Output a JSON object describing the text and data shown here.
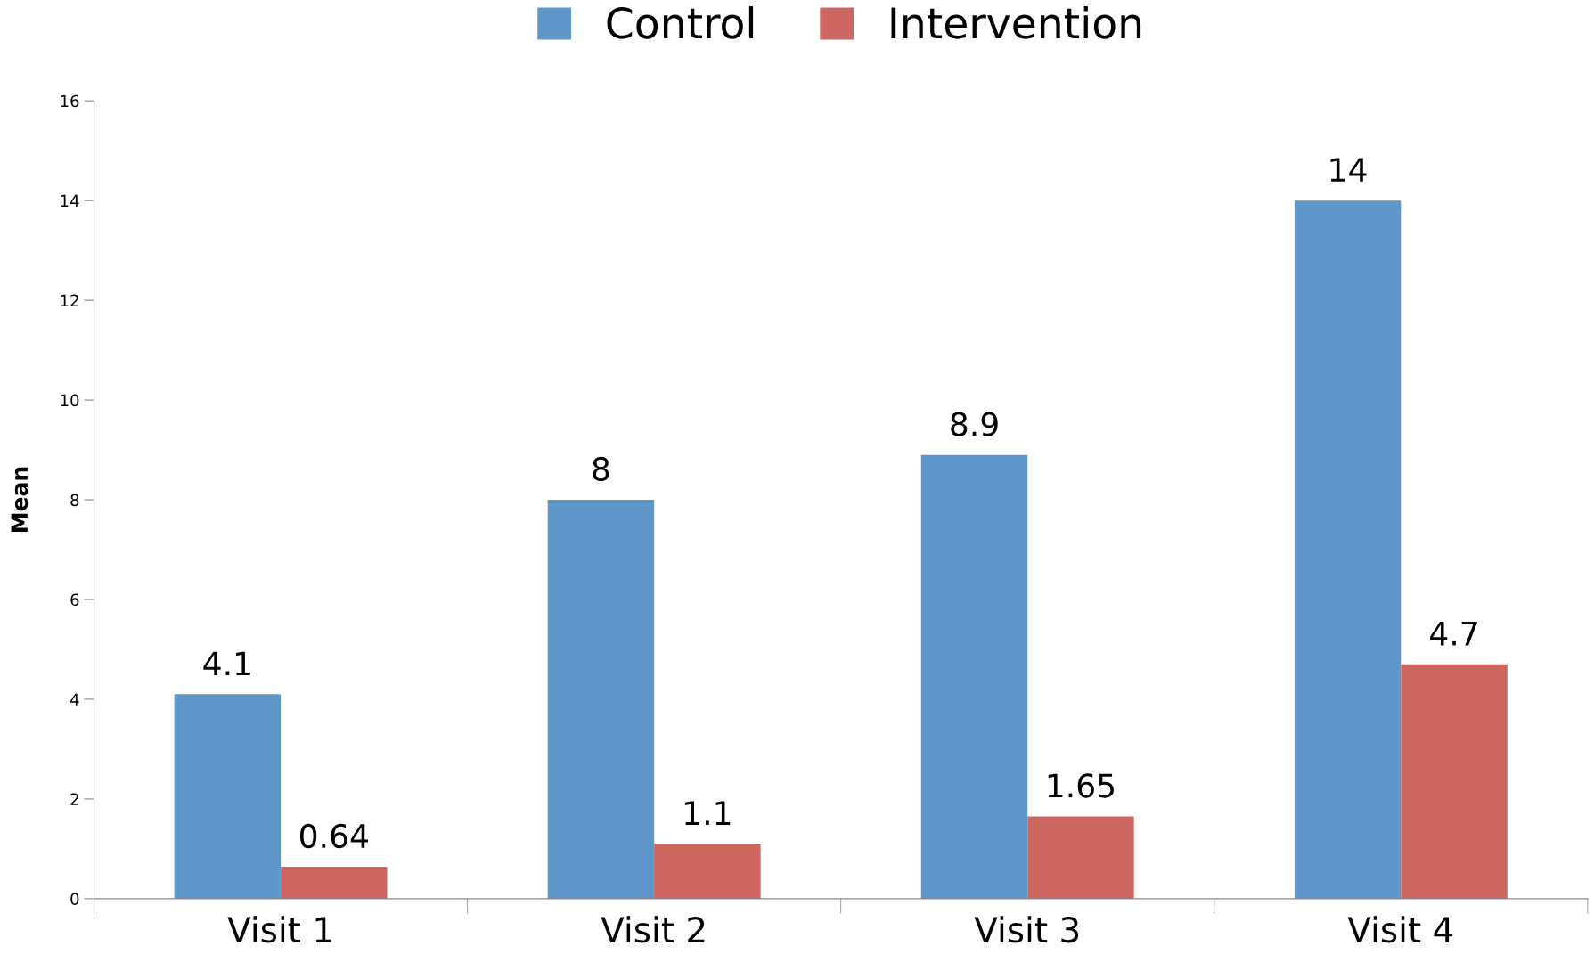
{
  "chart_data": {
    "type": "bar",
    "ylabel": "Mean",
    "categories": [
      "Visit 1",
      "Visit 2",
      "Visit 3",
      "Visit 4"
    ],
    "series": [
      {
        "name": "Control",
        "color": "#6097cb",
        "values": [
          4.1,
          8,
          8.9,
          14
        ]
      },
      {
        "name": "Intervention",
        "color": "#cc6660",
        "values": [
          0.64,
          1.1,
          1.65,
          4.7
        ]
      }
    ],
    "ylim": [
      0,
      16
    ],
    "yticks": [
      0,
      2,
      4,
      6,
      8,
      10,
      12,
      14,
      16
    ],
    "data_labels": true,
    "grid": false,
    "legend": "top"
  }
}
